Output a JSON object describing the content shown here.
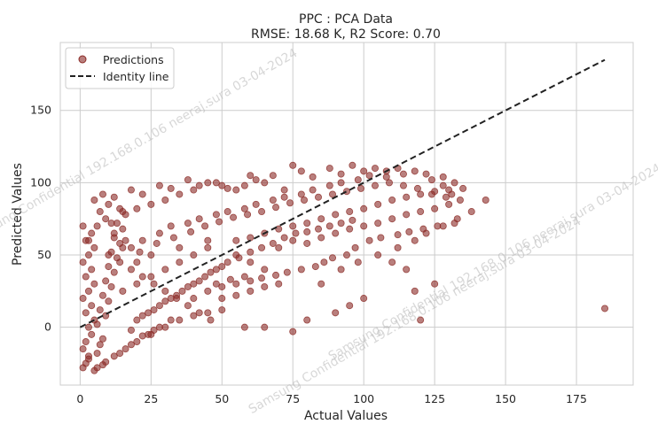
{
  "chart_data": {
    "type": "scatter",
    "title": "PPC : PCA Data",
    "subtitle": "RMSE: 18.68 K, R2 Score: 0.70",
    "xlabel": "Actual Values",
    "ylabel": "Predicted Values",
    "xlim": [
      -7,
      195
    ],
    "ylim": [
      -40,
      197
    ],
    "xticks": [
      0,
      25,
      50,
      75,
      100,
      125,
      150,
      175
    ],
    "yticks": [
      0,
      50,
      100,
      150
    ],
    "grid": true,
    "legend_position": "top-left",
    "point_color": "#8b2a26",
    "line_color": "#222222",
    "series": [
      {
        "name": "Predictions",
        "kind": "scatter",
        "points": [
          [
            1,
            -28
          ],
          [
            2,
            -25
          ],
          [
            3,
            -20
          ],
          [
            1,
            -15
          ],
          [
            2,
            -10
          ],
          [
            4,
            -5
          ],
          [
            3,
            0
          ],
          [
            5,
            5
          ],
          [
            2,
            10
          ],
          [
            4,
            15
          ],
          [
            1,
            20
          ],
          [
            3,
            25
          ],
          [
            5,
            30
          ],
          [
            2,
            35
          ],
          [
            4,
            40
          ],
          [
            1,
            45
          ],
          [
            3,
            50
          ],
          [
            5,
            55
          ],
          [
            2,
            60
          ],
          [
            4,
            65
          ],
          [
            1,
            70
          ],
          [
            3,
            -22
          ],
          [
            6,
            -18
          ],
          [
            7,
            -12
          ],
          [
            8,
            -8
          ],
          [
            6,
            2
          ],
          [
            9,
            8
          ],
          [
            7,
            12
          ],
          [
            10,
            18
          ],
          [
            8,
            22
          ],
          [
            11,
            28
          ],
          [
            9,
            32
          ],
          [
            12,
            38
          ],
          [
            10,
            42
          ],
          [
            13,
            48
          ],
          [
            11,
            52
          ],
          [
            14,
            58
          ],
          [
            12,
            62
          ],
          [
            15,
            68
          ],
          [
            13,
            72
          ],
          [
            16,
            78
          ],
          [
            14,
            82
          ],
          [
            5,
            -30
          ],
          [
            8,
            -26
          ],
          [
            12,
            -20
          ],
          [
            16,
            -15
          ],
          [
            20,
            -10
          ],
          [
            24,
            -5
          ],
          [
            28,
            0
          ],
          [
            32,
            5
          ],
          [
            18,
            -2
          ],
          [
            22,
            8
          ],
          [
            26,
            12
          ],
          [
            30,
            18
          ],
          [
            34,
            22
          ],
          [
            38,
            28
          ],
          [
            42,
            32
          ],
          [
            46,
            38
          ],
          [
            50,
            42
          ],
          [
            15,
            25
          ],
          [
            20,
            30
          ],
          [
            25,
            35
          ],
          [
            30,
            40
          ],
          [
            35,
            45
          ],
          [
            40,
            50
          ],
          [
            45,
            55
          ],
          [
            55,
            60
          ],
          [
            60,
            62
          ],
          [
            65,
            65
          ],
          [
            70,
            68
          ],
          [
            75,
            70
          ],
          [
            80,
            72
          ],
          [
            85,
            75
          ],
          [
            90,
            78
          ],
          [
            95,
            80
          ],
          [
            100,
            82
          ],
          [
            105,
            85
          ],
          [
            110,
            88
          ],
          [
            115,
            90
          ],
          [
            120,
            92
          ],
          [
            125,
            94
          ],
          [
            130,
            95
          ],
          [
            18,
            55
          ],
          [
            22,
            60
          ],
          [
            28,
            65
          ],
          [
            32,
            70
          ],
          [
            38,
            72
          ],
          [
            42,
            75
          ],
          [
            48,
            78
          ],
          [
            52,
            80
          ],
          [
            58,
            82
          ],
          [
            62,
            85
          ],
          [
            68,
            88
          ],
          [
            72,
            90
          ],
          [
            78,
            92
          ],
          [
            82,
            95
          ],
          [
            88,
            98
          ],
          [
            92,
            100
          ],
          [
            98,
            102
          ],
          [
            102,
            105
          ],
          [
            108,
            108
          ],
          [
            112,
            110
          ],
          [
            118,
            108
          ],
          [
            122,
            106
          ],
          [
            128,
            104
          ],
          [
            132,
            100
          ],
          [
            135,
            96
          ],
          [
            20,
            45
          ],
          [
            25,
            50
          ],
          [
            35,
            55
          ],
          [
            45,
            60
          ],
          [
            55,
            50
          ],
          [
            60,
            45
          ],
          [
            65,
            40
          ],
          [
            70,
            55
          ],
          [
            75,
            60
          ],
          [
            80,
            58
          ],
          [
            85,
            62
          ],
          [
            90,
            65
          ],
          [
            95,
            68
          ],
          [
            100,
            70
          ],
          [
            105,
            72
          ],
          [
            110,
            75
          ],
          [
            115,
            78
          ],
          [
            120,
            80
          ],
          [
            125,
            82
          ],
          [
            130,
            85
          ],
          [
            40,
            20
          ],
          [
            45,
            25
          ],
          [
            50,
            28
          ],
          [
            55,
            30
          ],
          [
            60,
            32
          ],
          [
            50,
            20
          ],
          [
            55,
            22
          ],
          [
            60,
            25
          ],
          [
            65,
            28
          ],
          [
            70,
            30
          ],
          [
            45,
            10
          ],
          [
            50,
            12
          ],
          [
            35,
            5
          ],
          [
            40,
            8
          ],
          [
            25,
            -5
          ],
          [
            30,
            0
          ],
          [
            58,
            0
          ],
          [
            65,
            0
          ],
          [
            75,
            -3
          ],
          [
            80,
            5
          ],
          [
            90,
            10
          ],
          [
            95,
            15
          ],
          [
            100,
            20
          ],
          [
            85,
            30
          ],
          [
            92,
            40
          ],
          [
            98,
            45
          ],
          [
            105,
            50
          ],
          [
            112,
            55
          ],
          [
            118,
            60
          ],
          [
            122,
            65
          ],
          [
            128,
            70
          ],
          [
            133,
            75
          ],
          [
            138,
            80
          ],
          [
            143,
            88
          ],
          [
            125,
            30
          ],
          [
            120,
            5
          ],
          [
            185,
            13
          ],
          [
            118,
            25
          ],
          [
            115,
            40
          ],
          [
            110,
            45
          ],
          [
            75,
            112
          ],
          [
            72,
            95
          ],
          [
            65,
            100
          ],
          [
            60,
            105
          ],
          [
            55,
            95
          ],
          [
            50,
            98
          ],
          [
            45,
            100
          ],
          [
            40,
            95
          ],
          [
            35,
            92
          ],
          [
            30,
            88
          ],
          [
            25,
            85
          ],
          [
            20,
            82
          ],
          [
            15,
            80
          ],
          [
            10,
            85
          ],
          [
            5,
            88
          ],
          [
            8,
            92
          ],
          [
            12,
            90
          ],
          [
            18,
            95
          ],
          [
            22,
            92
          ],
          [
            28,
            98
          ],
          [
            32,
            96
          ],
          [
            38,
            102
          ],
          [
            42,
            98
          ],
          [
            48,
            100
          ],
          [
            52,
            96
          ],
          [
            58,
            98
          ],
          [
            62,
            102
          ],
          [
            68,
            105
          ],
          [
            78,
            108
          ],
          [
            82,
            104
          ],
          [
            88,
            110
          ],
          [
            92,
            106
          ],
          [
            96,
            112
          ],
          [
            100,
            108
          ],
          [
            104,
            110
          ],
          [
            108,
            104
          ],
          [
            114,
            106
          ],
          [
            124,
            102
          ],
          [
            128,
            98
          ],
          [
            131,
            92
          ],
          [
            20,
            5
          ],
          [
            24,
            10
          ],
          [
            28,
            15
          ],
          [
            32,
            20
          ],
          [
            36,
            25
          ],
          [
            40,
            30
          ],
          [
            44,
            35
          ],
          [
            48,
            40
          ],
          [
            52,
            45
          ],
          [
            56,
            48
          ],
          [
            60,
            52
          ],
          [
            64,
            55
          ],
          [
            68,
            58
          ],
          [
            72,
            62
          ],
          [
            76,
            65
          ],
          [
            80,
            66
          ],
          [
            84,
            68
          ],
          [
            88,
            70
          ],
          [
            92,
            72
          ],
          [
            96,
            74
          ],
          [
            6,
            -28
          ],
          [
            9,
            -24
          ],
          [
            14,
            -18
          ],
          [
            18,
            -12
          ],
          [
            22,
            -6
          ],
          [
            26,
            -2
          ],
          [
            10,
            50
          ],
          [
            14,
            45
          ],
          [
            18,
            40
          ],
          [
            22,
            35
          ],
          [
            26,
            30
          ],
          [
            30,
            25
          ],
          [
            34,
            20
          ],
          [
            38,
            15
          ],
          [
            42,
            10
          ],
          [
            46,
            5
          ],
          [
            3,
            60
          ],
          [
            6,
            70
          ],
          [
            9,
            75
          ],
          [
            12,
            65
          ],
          [
            15,
            55
          ],
          [
            7,
            80
          ],
          [
            11,
            72
          ],
          [
            16,
            60
          ],
          [
            21,
            52
          ],
          [
            27,
            58
          ],
          [
            33,
            62
          ],
          [
            39,
            66
          ],
          [
            44,
            70
          ],
          [
            49,
            73
          ],
          [
            54,
            76
          ],
          [
            59,
            78
          ],
          [
            64,
            80
          ],
          [
            69,
            83
          ],
          [
            74,
            86
          ],
          [
            79,
            88
          ],
          [
            84,
            90
          ],
          [
            89,
            92
          ],
          [
            94,
            94
          ],
          [
            99,
            96
          ],
          [
            104,
            98
          ],
          [
            109,
            100
          ],
          [
            114,
            98
          ],
          [
            119,
            96
          ],
          [
            124,
            92
          ],
          [
            129,
            90
          ],
          [
            134,
            88
          ],
          [
            102,
            60
          ],
          [
            106,
            62
          ],
          [
            112,
            64
          ],
          [
            116,
            66
          ],
          [
            121,
            68
          ],
          [
            126,
            70
          ],
          [
            132,
            72
          ],
          [
            97,
            55
          ],
          [
            94,
            50
          ],
          [
            89,
            48
          ],
          [
            86,
            45
          ],
          [
            83,
            42
          ],
          [
            78,
            40
          ],
          [
            73,
            38
          ],
          [
            69,
            36
          ],
          [
            64,
            34
          ],
          [
            58,
            35
          ],
          [
            53,
            33
          ],
          [
            48,
            30
          ]
        ]
      },
      {
        "name": "Identity line",
        "kind": "line",
        "points": [
          [
            0,
            0
          ],
          [
            185,
            185
          ]
        ]
      }
    ],
    "watermark": "Samsung Confidential 192.168.0.106 neeraj.sura 03-04-2024"
  }
}
